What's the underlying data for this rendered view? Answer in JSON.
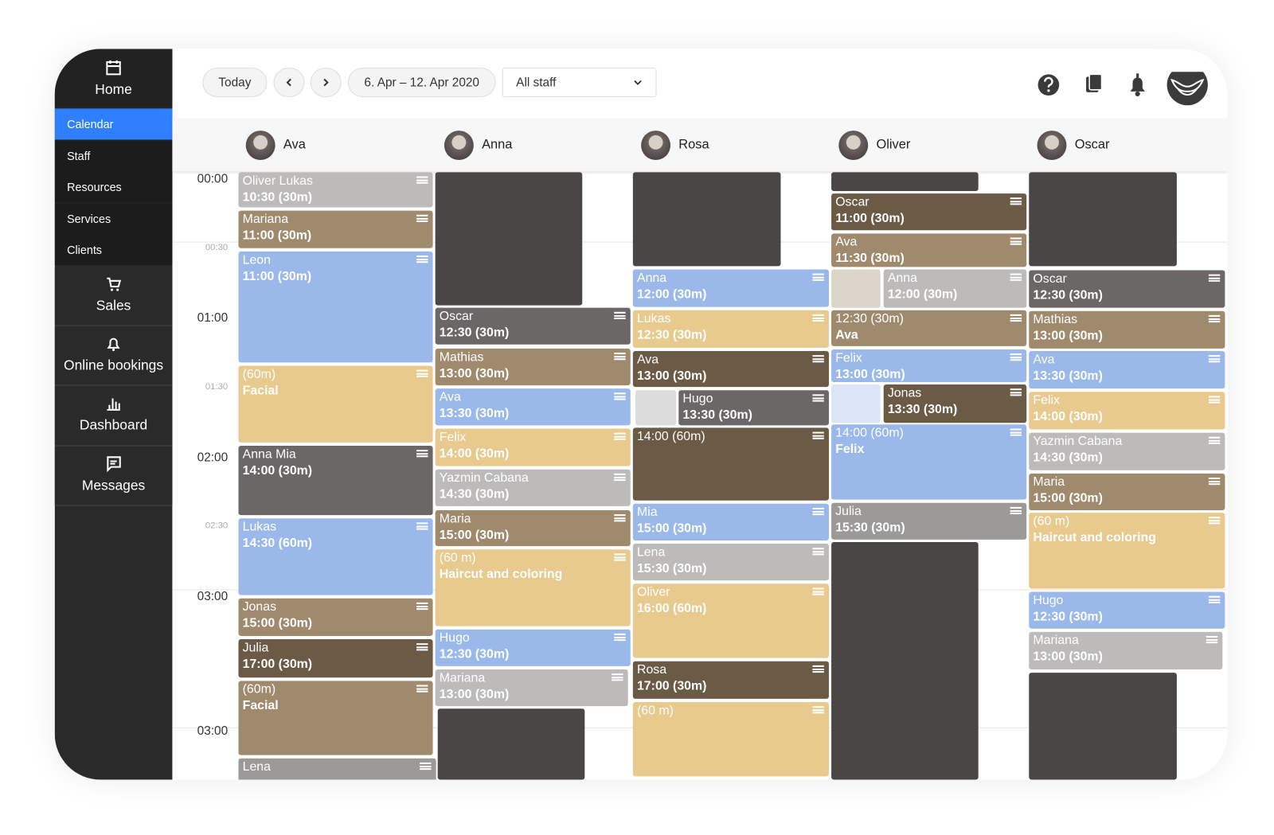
{
  "sidebar": {
    "items": [
      "Home",
      "Calendar",
      "Staff",
      "Resources",
      "Services",
      "Clients",
      "Sales",
      "Online bookings",
      "Dashboard",
      "Messages"
    ]
  },
  "toolbar": {
    "today": "Today",
    "date_range": "6. Apr – 12. Apr 2020",
    "staff_filter": "All staff"
  },
  "staff": [
    "Ava",
    "Anna",
    "Rosa",
    "Oliver",
    "Oscar"
  ],
  "times": [
    "00:00",
    "00:30",
    "01:00",
    "01:30",
    "02:00",
    "02:30",
    "03:00",
    "03:00"
  ],
  "columns": [
    {
      "appointments": [
        {
          "lines": [
            "Oliver Lukas",
            "10:30 (30m)"
          ],
          "color": "#bdbbba"
        },
        {
          "lines": [
            "Mariana",
            "11:00 (30m)"
          ],
          "color": "#a08a6e"
        },
        {
          "lines": [
            "Leon",
            "11:00 (30m)"
          ],
          "color": "#9ab9ea"
        },
        {
          "lines": [
            "(60m)",
            "Facial"
          ],
          "color": "#e8c98e"
        },
        {
          "lines": [
            "Anna Mia",
            "14:00 (30m)"
          ],
          "color": "#6b6766"
        },
        {
          "lines": [
            "Lukas",
            "14:30 (60m)"
          ],
          "color": "#9ab9ea"
        },
        {
          "lines": [
            "Jonas",
            "15:00 (30m)"
          ],
          "color": "#a08a6e"
        },
        {
          "lines": [
            "Julia",
            "17:00 (30m)"
          ],
          "color": "#6b5a45"
        },
        {
          "lines": [
            "(60m)",
            "Facial"
          ],
          "color": "#a08a6e"
        },
        {
          "lines": [
            "Lena"
          ],
          "color": "#9c9a99"
        }
      ]
    },
    {
      "appointments": [
        {
          "lines": [
            "Oscar",
            "12:30 (30m)"
          ],
          "color": "#6b6766"
        },
        {
          "lines": [
            "Mathias",
            "13:00 (30m)"
          ],
          "color": "#a08a6e"
        },
        {
          "lines": [
            "Ava",
            "13:30 (30m)"
          ],
          "color": "#9ab9ea"
        },
        {
          "lines": [
            "Felix",
            "14:00 (30m)"
          ],
          "color": "#e8c98e"
        },
        {
          "lines": [
            "Yazmin Cabana",
            "14:30 (30m)"
          ],
          "color": "#bdbbba"
        },
        {
          "lines": [
            "Maria",
            "15:00 (30m)"
          ],
          "color": "#a08a6e"
        },
        {
          "lines": [
            "(60 m)",
            "Haircut and coloring"
          ],
          "color": "#e8c98e"
        },
        {
          "lines": [
            "Hugo",
            "12:30 (30m)"
          ],
          "color": "#9ab9ea"
        },
        {
          "lines": [
            "Mariana",
            "13:00 (30m)"
          ],
          "color": "#bdbbba"
        }
      ]
    },
    {
      "appointments": [
        {
          "lines": [
            "Anna",
            "12:00 (30m)"
          ],
          "color": "#9ab9ea"
        },
        {
          "lines": [
            "Lukas",
            "12:30 (30m)"
          ],
          "color": "#e8c98e"
        },
        {
          "lines": [
            "Ava",
            "13:00 (30m)"
          ],
          "color": "#6b5a45"
        },
        {
          "lines": [
            "Hugo",
            "13:30 (30m)"
          ],
          "color": "#6b6766"
        },
        {
          "lines": [
            "14:00 (60m)"
          ],
          "color": "#6b5a45"
        },
        {
          "lines": [
            "Mia",
            "15:00 (30m)"
          ],
          "color": "#9ab9ea"
        },
        {
          "lines": [
            "Lena",
            "15:30 (30m)"
          ],
          "color": "#bdbbba"
        },
        {
          "lines": [
            "Oliver",
            "16:00 (60m)"
          ],
          "color": "#e8c98e"
        },
        {
          "lines": [
            "Rosa",
            "17:00 (30m)"
          ],
          "color": "#6b5a45"
        },
        {
          "lines": [
            "(60 m)"
          ],
          "color": "#e8c98e"
        }
      ]
    },
    {
      "appointments": [
        {
          "lines": [
            "Oscar",
            "11:00 (30m)"
          ],
          "color": "#6b5a45"
        },
        {
          "lines": [
            "Ava",
            "11:30 (30m)"
          ],
          "color": "#a08a6e"
        },
        {
          "lines": [
            "Anna",
            "12:00 (30m)"
          ],
          "color": "#bdbbba"
        },
        {
          "lines": [
            "12:30 (30m)",
            "Ava"
          ],
          "color": "#a08a6e"
        },
        {
          "lines": [
            "Felix",
            "13:00 (30m)"
          ],
          "color": "#9ab9ea"
        },
        {
          "lines": [
            "Jonas",
            "13:30 (30m)"
          ],
          "color": "#6b5a45"
        },
        {
          "lines": [
            "14:00 (60m)",
            "Felix"
          ],
          "color": "#9ab9ea"
        },
        {
          "lines": [
            "Julia",
            "15:30 (30m)"
          ],
          "color": "#9c9a99"
        }
      ]
    },
    {
      "appointments": [
        {
          "lines": [
            "Oscar",
            "12:30 (30m)"
          ],
          "color": "#6b6766"
        },
        {
          "lines": [
            "Mathias",
            "13:00 (30m)"
          ],
          "color": "#a08a6e"
        },
        {
          "lines": [
            "Ava",
            "13:30 (30m)"
          ],
          "color": "#9ab9ea"
        },
        {
          "lines": [
            "Felix",
            "14:00 (30m)"
          ],
          "color": "#e8c98e"
        },
        {
          "lines": [
            "Yazmin Cabana",
            "14:30 (30m)"
          ],
          "color": "#bdbbba"
        },
        {
          "lines": [
            "Maria",
            "15:00 (30m)"
          ],
          "color": "#a08a6e"
        },
        {
          "lines": [
            "(60 m)",
            "Haircut and coloring"
          ],
          "color": "#e8c98e"
        },
        {
          "lines": [
            "Hugo",
            "12:30 (30m)"
          ],
          "color": "#9ab9ea"
        },
        {
          "lines": [
            "Mariana",
            "13:00 (30m)"
          ],
          "color": "#bdbbba"
        }
      ]
    }
  ]
}
